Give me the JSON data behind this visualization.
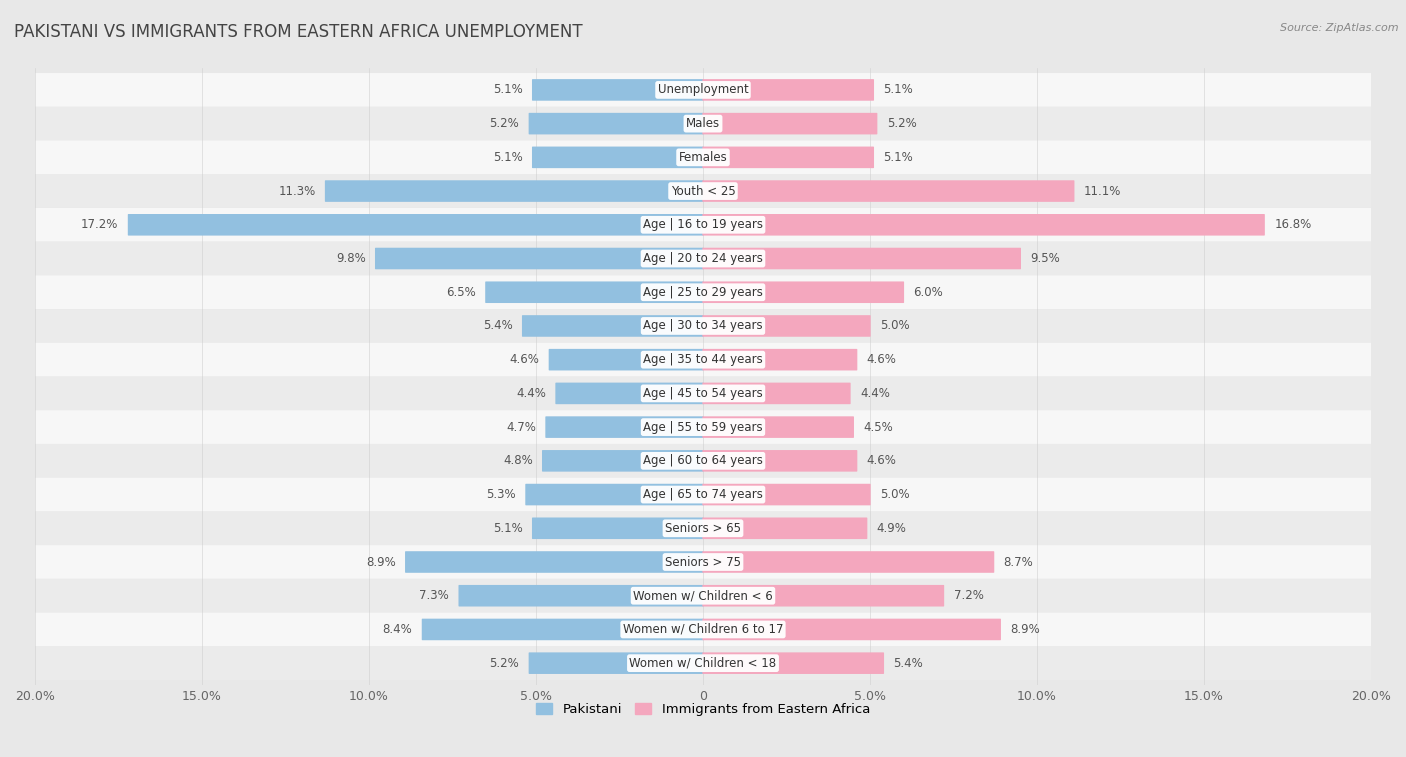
{
  "title": "PAKISTANI VS IMMIGRANTS FROM EASTERN AFRICA UNEMPLOYMENT",
  "source": "Source: ZipAtlas.com",
  "categories": [
    "Unemployment",
    "Males",
    "Females",
    "Youth < 25",
    "Age | 16 to 19 years",
    "Age | 20 to 24 years",
    "Age | 25 to 29 years",
    "Age | 30 to 34 years",
    "Age | 35 to 44 years",
    "Age | 45 to 54 years",
    "Age | 55 to 59 years",
    "Age | 60 to 64 years",
    "Age | 65 to 74 years",
    "Seniors > 65",
    "Seniors > 75",
    "Women w/ Children < 6",
    "Women w/ Children 6 to 17",
    "Women w/ Children < 18"
  ],
  "pakistani": [
    5.1,
    5.2,
    5.1,
    11.3,
    17.2,
    9.8,
    6.5,
    5.4,
    4.6,
    4.4,
    4.7,
    4.8,
    5.3,
    5.1,
    8.9,
    7.3,
    8.4,
    5.2
  ],
  "eastern_africa": [
    5.1,
    5.2,
    5.1,
    11.1,
    16.8,
    9.5,
    6.0,
    5.0,
    4.6,
    4.4,
    4.5,
    4.6,
    5.0,
    4.9,
    8.7,
    7.2,
    8.9,
    5.4
  ],
  "pakistani_color": "#92c0e0",
  "eastern_africa_color": "#f4a7be",
  "row_bg_light": "#f7f7f7",
  "row_bg_dark": "#ebebeb",
  "background_color": "#e8e8e8",
  "axis_max": 20.0,
  "bar_height": 0.6,
  "title_fontsize": 12,
  "label_fontsize": 8.5,
  "tick_fontsize": 9,
  "value_fontsize": 8.5,
  "legend_labels": [
    "Pakistani",
    "Immigrants from Eastern Africa"
  ],
  "xticks": [
    -20,
    -15,
    -10,
    -5,
    0,
    5,
    10,
    15,
    20
  ],
  "xticklabels": [
    "20.0%",
    "15.0%",
    "10.0%",
    "5.0%",
    "0",
    "5.0%",
    "10.0%",
    "15.0%",
    "20.0%"
  ]
}
